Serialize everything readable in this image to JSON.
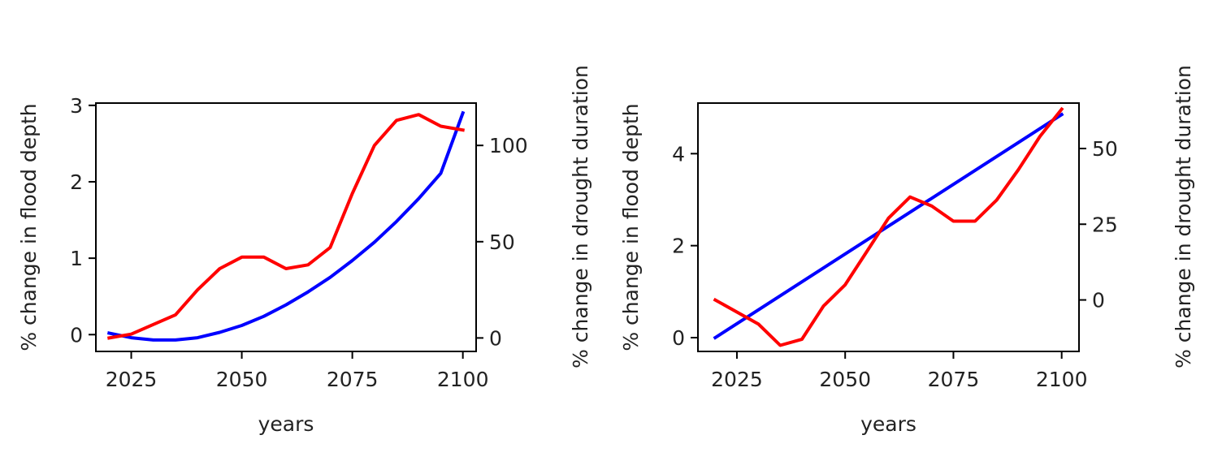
{
  "chart_data": [
    {
      "type": "line",
      "title": "",
      "xlabel": "years",
      "ylabel": "% change in flood depth",
      "y2label": "% change in drought duration",
      "xlim": [
        2017,
        2103
      ],
      "ylim": [
        -0.22,
        3.03
      ],
      "y2lim": [
        -7,
        122
      ],
      "xticks": [
        "2025",
        "2050",
        "2075",
        "2100"
      ],
      "yticks": [
        "0",
        "1",
        "2",
        "3"
      ],
      "y2ticks": [
        "0",
        "50",
        "100"
      ],
      "grid": false,
      "series": [
        {
          "axis": "left",
          "color": "#0000ff",
          "x": [
            2020,
            2025,
            2030,
            2035,
            2040,
            2045,
            2050,
            2055,
            2060,
            2065,
            2070,
            2075,
            2080,
            2085,
            2090,
            2095,
            2100
          ],
          "values": [
            0.02,
            -0.04,
            -0.07,
            -0.07,
            -0.04,
            0.03,
            0.12,
            0.24,
            0.39,
            0.56,
            0.75,
            0.97,
            1.21,
            1.48,
            1.78,
            2.11,
            2.9
          ]
        },
        {
          "axis": "right",
          "color": "#ff0000",
          "x": [
            2020,
            2025,
            2030,
            2035,
            2040,
            2045,
            2050,
            2055,
            2060,
            2065,
            2070,
            2075,
            2080,
            2085,
            2090,
            2095,
            2100
          ],
          "values": [
            0,
            2,
            7,
            12,
            25,
            36,
            42,
            42,
            36,
            38,
            47,
            75,
            100,
            113,
            116,
            110,
            108
          ]
        }
      ]
    },
    {
      "type": "line",
      "title": "",
      "xlabel": "years",
      "ylabel": "% change in flood depth",
      "y2label": "% change in drought duration",
      "xlim": [
        2016,
        2104
      ],
      "ylim": [
        -0.3,
        5.1
      ],
      "y2lim": [
        -17,
        65
      ],
      "xticks": [
        "2025",
        "2050",
        "2075",
        "2100"
      ],
      "yticks": [
        "0",
        "2",
        "4"
      ],
      "y2ticks": [
        "0",
        "25",
        "50"
      ],
      "grid": false,
      "series": [
        {
          "axis": "left",
          "color": "#0000ff",
          "x": [
            2020,
            2100
          ],
          "values": [
            0.0,
            4.85
          ]
        },
        {
          "axis": "right",
          "color": "#ff0000",
          "x": [
            2020,
            2025,
            2030,
            2035,
            2040,
            2045,
            2050,
            2055,
            2060,
            2065,
            2070,
            2075,
            2080,
            2085,
            2090,
            2095,
            2100
          ],
          "values": [
            0,
            -4,
            -8,
            -15,
            -13,
            -2,
            5,
            16,
            27,
            34,
            31,
            26,
            26,
            33,
            43,
            54,
            63
          ]
        }
      ]
    }
  ]
}
